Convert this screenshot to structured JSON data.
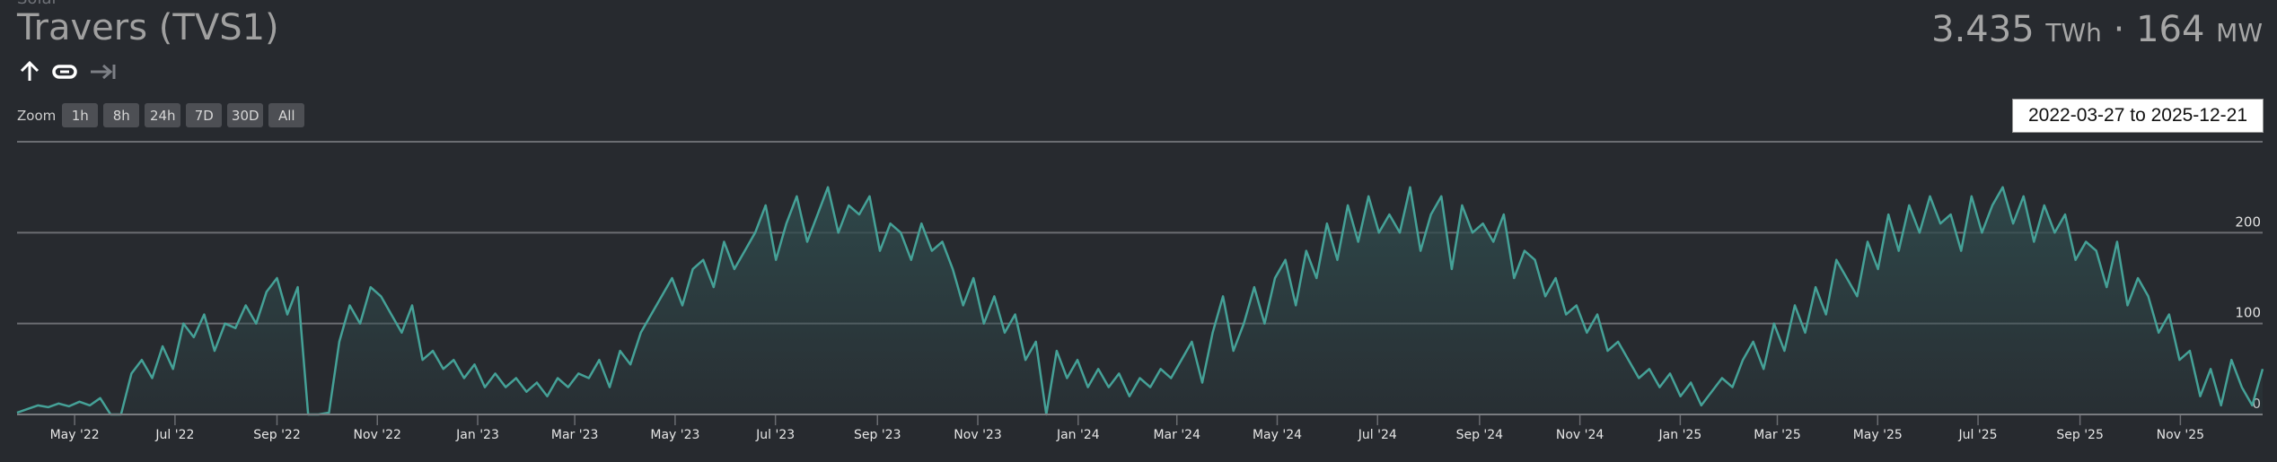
{
  "header": {
    "subtitle": "Solar",
    "title": "Travers (TVS1)",
    "energy_value": "3.435",
    "energy_unit": "TWh",
    "separator": "·",
    "power_value": "164",
    "power_unit": "MW"
  },
  "icons": [
    "arrow-up-icon",
    "link-icon",
    "arrow-to-end-icon"
  ],
  "zoom": {
    "label": "Zoom",
    "buttons": [
      "1h",
      "8h",
      "24h",
      "7D",
      "30D",
      "All"
    ]
  },
  "date_range": "2022-03-27 to 2025-12-21",
  "colors": {
    "line": "#45a197",
    "fill": "#2f4a4c",
    "grid": "#6b6d72",
    "background": "#272a2f"
  },
  "chart_data": {
    "type": "area",
    "title": "Travers (TVS1)",
    "ylabel": "MW",
    "ylim": [
      0,
      300
    ],
    "yticks": [
      {
        "value": 200,
        "label": "200"
      },
      {
        "value": 100,
        "label": "100"
      },
      {
        "value": 0,
        "label": "0"
      }
    ],
    "x_start": "2022-03-27",
    "x_end": "2025-12-21",
    "grid": true,
    "xticks": [
      {
        "date": "2022-05-01",
        "label": "May '22"
      },
      {
        "date": "2022-07-01",
        "label": "Jul '22"
      },
      {
        "date": "2022-09-01",
        "label": "Sep '22"
      },
      {
        "date": "2022-11-01",
        "label": "Nov '22"
      },
      {
        "date": "2023-01-01",
        "label": "Jan '23"
      },
      {
        "date": "2023-03-01",
        "label": "Mar '23"
      },
      {
        "date": "2023-05-01",
        "label": "May '23"
      },
      {
        "date": "2023-07-01",
        "label": "Jul '23"
      },
      {
        "date": "2023-09-01",
        "label": "Sep '23"
      },
      {
        "date": "2023-11-01",
        "label": "Nov '23"
      },
      {
        "date": "2024-01-01",
        "label": "Jan '24"
      },
      {
        "date": "2024-03-01",
        "label": "Mar '24"
      },
      {
        "date": "2024-05-01",
        "label": "May '24"
      },
      {
        "date": "2024-07-01",
        "label": "Jul '24"
      },
      {
        "date": "2024-09-01",
        "label": "Sep '24"
      },
      {
        "date": "2024-11-01",
        "label": "Nov '24"
      },
      {
        "date": "2025-01-01",
        "label": "Jan '25"
      },
      {
        "date": "2025-03-01",
        "label": "Mar '25"
      },
      {
        "date": "2025-05-01",
        "label": "May '25"
      },
      {
        "date": "2025-07-01",
        "label": "Jul '25"
      },
      {
        "date": "2025-09-01",
        "label": "Sep '25"
      },
      {
        "date": "2025-11-01",
        "label": "Nov '25"
      }
    ],
    "series": [
      {
        "name": "Travers (TVS1)",
        "values": [
          2,
          6,
          10,
          8,
          12,
          9,
          14,
          10,
          18,
          0,
          0,
          45,
          60,
          40,
          75,
          50,
          100,
          85,
          110,
          70,
          100,
          95,
          120,
          100,
          135,
          150,
          110,
          140,
          0,
          0,
          2,
          80,
          120,
          100,
          140,
          130,
          110,
          90,
          120,
          60,
          70,
          50,
          60,
          40,
          55,
          30,
          45,
          30,
          40,
          25,
          35,
          20,
          40,
          30,
          45,
          40,
          60,
          30,
          70,
          55,
          90,
          110,
          130,
          150,
          120,
          160,
          170,
          140,
          190,
          160,
          180,
          200,
          230,
          170,
          210,
          240,
          190,
          220,
          250,
          200,
          230,
          220,
          240,
          180,
          210,
          200,
          170,
          210,
          180,
          190,
          160,
          120,
          150,
          100,
          130,
          90,
          110,
          60,
          80,
          0,
          70,
          40,
          60,
          30,
          50,
          30,
          45,
          20,
          40,
          30,
          50,
          40,
          60,
          80,
          35,
          90,
          130,
          70,
          100,
          140,
          100,
          150,
          170,
          120,
          180,
          150,
          210,
          170,
          230,
          190,
          240,
          200,
          220,
          200,
          250,
          180,
          220,
          240,
          160,
          230,
          200,
          210,
          190,
          220,
          150,
          180,
          170,
          130,
          150,
          110,
          120,
          90,
          110,
          70,
          80,
          60,
          40,
          50,
          30,
          45,
          20,
          35,
          10,
          25,
          40,
          30,
          60,
          80,
          50,
          100,
          70,
          120,
          90,
          140,
          110,
          170,
          150,
          130,
          190,
          160,
          220,
          180,
          230,
          200,
          240,
          210,
          220,
          180,
          240,
          200,
          230,
          250,
          210,
          240,
          190,
          230,
          200,
          220,
          170,
          190,
          180,
          140,
          190,
          120,
          150,
          130,
          90,
          110,
          60,
          70,
          20,
          50,
          10,
          60,
          30,
          10,
          50
        ]
      }
    ]
  }
}
